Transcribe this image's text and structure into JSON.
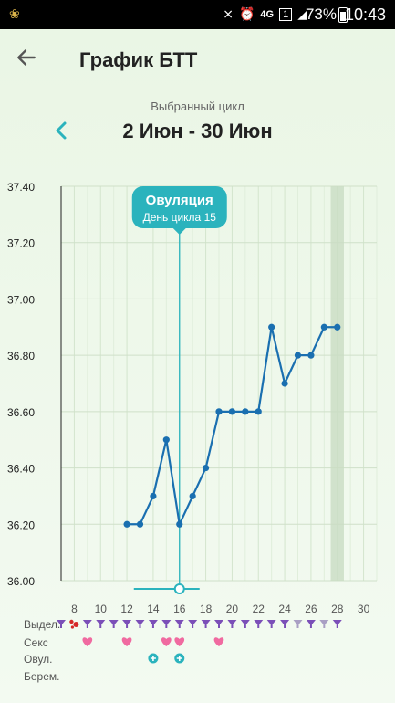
{
  "status_bar": {
    "network": "4G",
    "sim": "1",
    "battery_percent": "73%",
    "time": "10:43"
  },
  "header": {
    "title": "График БТТ"
  },
  "cycle": {
    "caption": "Выбранный цикл",
    "range": "2 Июн - 30 Июн"
  },
  "ovulation_tooltip": {
    "title": "Овуляция",
    "subtitle": "День цикла 15"
  },
  "chart_data": {
    "type": "line",
    "title": "",
    "xlabel": "",
    "ylabel": "",
    "x_ticks": [
      "8",
      "10",
      "12",
      "14",
      "16",
      "18",
      "20",
      "22",
      "24",
      "26",
      "28",
      "30"
    ],
    "y_ticks": [
      "37.40",
      "37.20",
      "37.00",
      "36.80",
      "36.60",
      "36.40",
      "36.20",
      "36.00"
    ],
    "xlim": [
      7,
      31
    ],
    "ylim": [
      36.0,
      37.4
    ],
    "grid": true,
    "ovulation_day": 16,
    "highlighted_day": 28,
    "series": [
      {
        "x": [
          12,
          13,
          14,
          15,
          16,
          17,
          18,
          19,
          20,
          21,
          22,
          23,
          24,
          25,
          26,
          27,
          28
        ],
        "values": [
          36.2,
          36.2,
          36.3,
          36.5,
          36.2,
          36.3,
          36.4,
          36.6,
          36.6,
          36.6,
          36.6,
          36.9,
          36.7,
          36.8,
          36.8,
          36.9,
          36.9
        ]
      }
    ]
  },
  "rows": {
    "discharge_label": "Выдел.",
    "sex_label": "Секс",
    "ovulation_label": "Овул.",
    "pregnancy_label": "Берем."
  },
  "markers": {
    "discharge_days": [
      7,
      8,
      9,
      10,
      11,
      12,
      13,
      14,
      15,
      16,
      17,
      18,
      19,
      20,
      21,
      22,
      23,
      24,
      25,
      26,
      27,
      28
    ],
    "spotting_day": 8,
    "light_discharge_days": [
      25,
      27
    ],
    "sex_days": [
      9,
      12,
      15,
      16,
      19
    ],
    "ovulation_test_days": [
      14,
      16
    ]
  },
  "colors": {
    "accent": "#2bb3bd",
    "line": "#1a6fb0",
    "discharge": "#7b4fb8",
    "light_discharge": "#a99fc4",
    "spotting": "#d62828",
    "heart": "#f06aa0"
  }
}
